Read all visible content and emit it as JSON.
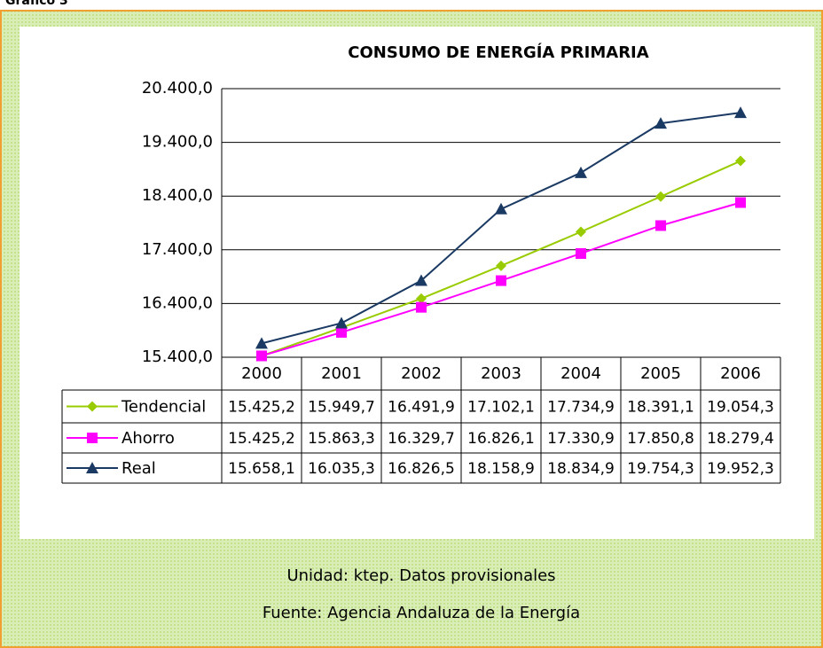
{
  "header": "Gráfico 3",
  "chart_data": {
    "type": "line",
    "title": "CONSUMO DE ENERGÍA PRIMARIA",
    "categories": [
      "2000",
      "2001",
      "2002",
      "2003",
      "2004",
      "2005",
      "2006"
    ],
    "series": [
      {
        "name": "Tendencial",
        "color": "#99cc00",
        "marker": "diamond",
        "values": [
          15425.2,
          15949.7,
          16491.9,
          17102.1,
          17734.9,
          18391.1,
          19054.3
        ],
        "value_labels": [
          "15.425,2",
          "15.949,7",
          "16.491,9",
          "17.102,1",
          "17.734,9",
          "18.391,1",
          "19.054,3"
        ]
      },
      {
        "name": "Ahorro",
        "color": "#ff00ff",
        "marker": "square",
        "values": [
          15425.2,
          15863.3,
          16329.7,
          16826.1,
          17330.9,
          17850.8,
          18279.4
        ],
        "value_labels": [
          "15.425,2",
          "15.863,3",
          "16.329,7",
          "16.826,1",
          "17.330,9",
          "17.850,8",
          "18.279,4"
        ]
      },
      {
        "name": "Real",
        "color": "#1b3a63",
        "marker": "triangle",
        "values": [
          15658.1,
          16035.3,
          16826.5,
          18158.9,
          18834.9,
          19754.3,
          19952.3
        ],
        "value_labels": [
          "15.658,1",
          "16.035,3",
          "16.826,5",
          "18.158,9",
          "18.834,9",
          "19.754,3",
          "19.952,3"
        ]
      }
    ],
    "ylim": [
      15400,
      20400
    ],
    "yticks": [
      {
        "value": 15400,
        "label": "15.400,0"
      },
      {
        "value": 16400,
        "label": "16.400,0"
      },
      {
        "value": 17400,
        "label": "17.400,0"
      },
      {
        "value": 18400,
        "label": "18.400,0"
      },
      {
        "value": 19400,
        "label": "19.400,0"
      },
      {
        "value": 20400,
        "label": "20.400,0"
      }
    ],
    "grid": true
  },
  "notes": [
    "Unidad: ktep. Datos provisionales",
    "Fuente: Agencia Andaluza de la Energía"
  ]
}
